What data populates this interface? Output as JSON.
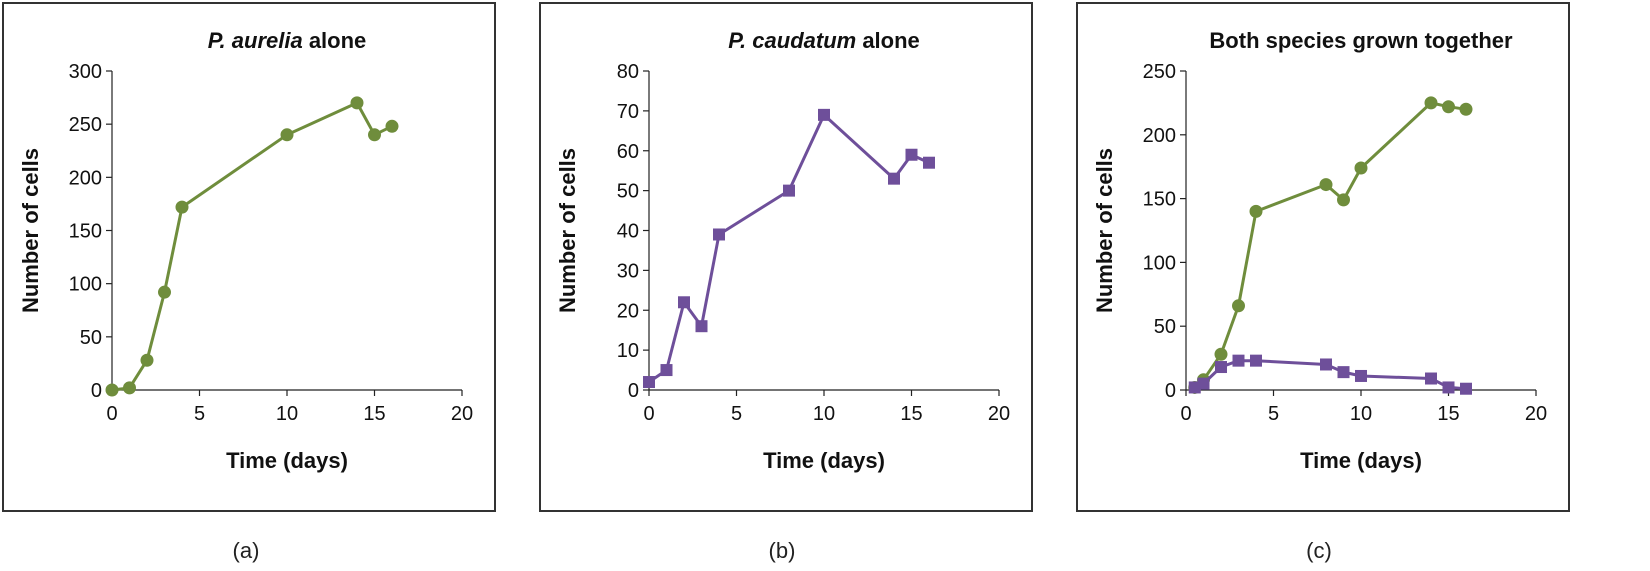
{
  "colors": {
    "green": "#6f8d3c",
    "purple": "#6e4f9a",
    "axis": "#222222",
    "frame": "#333333"
  },
  "captions": [
    "(a)",
    "(b)",
    "(c)"
  ],
  "chart_data": [
    {
      "type": "line",
      "title_parts": [
        {
          "text": "P. aurelia",
          "italic": true
        },
        {
          "text": " alone",
          "italic": false
        }
      ],
      "xlabel": "Time (days)",
      "ylabel": "Number of cells",
      "xlim": [
        0,
        20
      ],
      "ylim": [
        0,
        300
      ],
      "xticks": [
        0,
        5,
        10,
        15,
        20
      ],
      "yticks": [
        0,
        50,
        100,
        150,
        200,
        250,
        300
      ],
      "grid": false,
      "series": [
        {
          "color": "green",
          "marker": "circle",
          "points": [
            [
              0,
              0
            ],
            [
              1,
              2
            ],
            [
              2,
              28
            ],
            [
              3,
              92
            ],
            [
              4,
              172
            ],
            [
              10,
              240
            ],
            [
              14,
              270
            ],
            [
              15,
              240
            ],
            [
              16,
              248
            ]
          ]
        }
      ]
    },
    {
      "type": "line",
      "title_parts": [
        {
          "text": "P. caudatum",
          "italic": true
        },
        {
          "text": " alone",
          "italic": false
        }
      ],
      "xlabel": "Time (days)",
      "ylabel": "Number of cells",
      "xlim": [
        0,
        20
      ],
      "ylim": [
        0,
        80
      ],
      "xticks": [
        0,
        5,
        10,
        15,
        20
      ],
      "yticks": [
        0,
        10,
        20,
        30,
        40,
        50,
        60,
        70,
        80
      ],
      "grid": false,
      "series": [
        {
          "color": "purple",
          "marker": "square",
          "points": [
            [
              0,
              2
            ],
            [
              1,
              5
            ],
            [
              2,
              22
            ],
            [
              3,
              16
            ],
            [
              4,
              39
            ],
            [
              8,
              50
            ],
            [
              10,
              69
            ],
            [
              14,
              53
            ],
            [
              15,
              59
            ],
            [
              16,
              57
            ]
          ]
        }
      ]
    },
    {
      "type": "line",
      "title_parts": [
        {
          "text": "Both species grown together",
          "italic": false
        }
      ],
      "xlabel": "Time (days)",
      "ylabel": "Number of cells",
      "xlim": [
        0,
        20
      ],
      "ylim": [
        0,
        250
      ],
      "xticks": [
        0,
        5,
        10,
        15,
        20
      ],
      "yticks": [
        0,
        50,
        100,
        150,
        200,
        250
      ],
      "grid": false,
      "series": [
        {
          "color": "green",
          "marker": "circle",
          "points": [
            [
              0.5,
              2
            ],
            [
              1,
              8
            ],
            [
              2,
              28
            ],
            [
              3,
              66
            ],
            [
              4,
              140
            ],
            [
              8,
              161
            ],
            [
              9,
              149
            ],
            [
              10,
              174
            ],
            [
              14,
              225
            ],
            [
              15,
              222
            ],
            [
              16,
              220
            ]
          ]
        },
        {
          "color": "purple",
          "marker": "square",
          "points": [
            [
              0.5,
              2
            ],
            [
              1,
              5
            ],
            [
              2,
              18
            ],
            [
              3,
              23
            ],
            [
              4,
              23
            ],
            [
              8,
              20
            ],
            [
              9,
              14
            ],
            [
              10,
              11
            ],
            [
              14,
              9
            ],
            [
              15,
              2
            ],
            [
              16,
              1
            ]
          ]
        }
      ]
    }
  ]
}
